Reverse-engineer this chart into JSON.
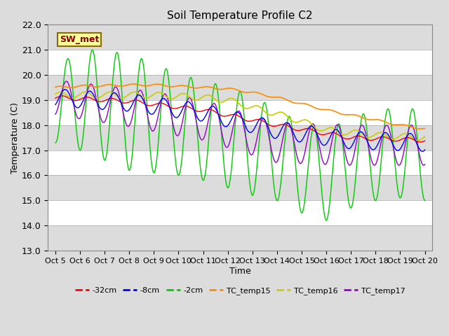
{
  "title": "Soil Temperature Profile C2",
  "xlabel": "Time",
  "ylabel": "Temperature (C)",
  "ylim": [
    13.0,
    22.0
  ],
  "yticks": [
    13.0,
    14.0,
    15.0,
    16.0,
    17.0,
    18.0,
    19.0,
    20.0,
    21.0,
    22.0
  ],
  "xtick_labels": [
    "Oct 5",
    "Oct 6",
    "Oct 7",
    "Oct 8",
    "Oct 9",
    "Oct 10",
    "Oct 11",
    "Oct 12",
    "Oct 13",
    "Oct 14",
    "Oct 15",
    "Oct 16",
    "Oct 17",
    "Oct 18",
    "Oct 19",
    "Oct 20"
  ],
  "annotation_text": "SW_met",
  "annotation_color": "#8B0000",
  "annotation_bg": "#FFFF99",
  "annotation_border": "#8B6914",
  "series_colors": {
    "neg32cm": "#FF0000",
    "neg8cm": "#0000FF",
    "neg2cm": "#00CC00",
    "TC_temp15": "#FF8C00",
    "TC_temp16": "#CCCC00",
    "TC_temp17": "#9900CC"
  },
  "legend_labels": [
    "-32cm",
    "-8cm",
    "-2cm",
    "TC_temp15",
    "TC_temp16",
    "TC_temp17"
  ],
  "bg_color": "#DCDCDC",
  "white_band": "#FFFFFF",
  "n_points": 1500
}
